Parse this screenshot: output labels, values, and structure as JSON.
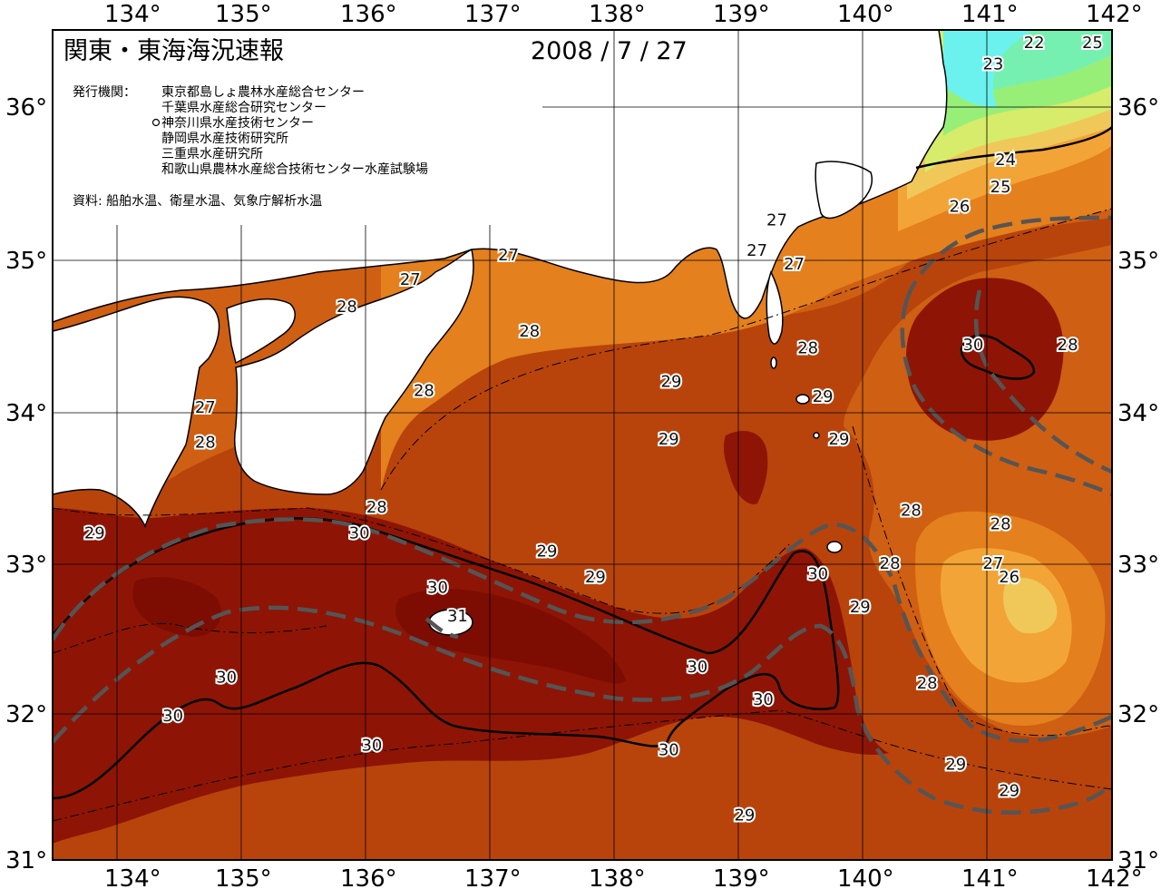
{
  "header": {
    "title": "関東・東海海況速報",
    "date": "2008 / 7 / 27"
  },
  "agencies": {
    "label": "発行機関：",
    "list": [
      "東京都島しょ農林水産総合センター",
      "千葉県水産総合研究センター",
      "神奈川県水産技術センター",
      "静岡県水産技術研究所",
      "三重県水産研究所",
      "和歌山県農林水産総合技術センター水産試験場"
    ],
    "marked_index": 2
  },
  "source": "資料: 船舶水温、衛星水温、気象庁解析水温",
  "axes": {
    "lon_ticks": [
      "134°",
      "135°",
      "136°",
      "137°",
      "138°",
      "139°",
      "140°",
      "141°",
      "142°"
    ],
    "lat_ticks": [
      "36°",
      "35°",
      "34°",
      "33°",
      "32°",
      "31°"
    ]
  },
  "colors": {
    "sea_31": "#7d0d03",
    "sea_30": "#8e1505",
    "sea_29": "#b8440c",
    "sea_28": "#cf5f12",
    "sea_27": "#e4801d",
    "sea_26": "#f3a436",
    "sea_25": "#f0c85a",
    "sea_24": "#d6ec6a",
    "sea_23": "#98ef78",
    "sea_22": "#76f0b0",
    "sea_21": "#6cf2ee",
    "land": "#ffffff",
    "kuroshio_axis": "#555555"
  },
  "contour_labels": [
    {
      "text": "22",
      "lon": 141.38,
      "lat": 36.43
    },
    {
      "text": "25",
      "lon": 141.85,
      "lat": 36.43
    },
    {
      "text": "23",
      "lon": 141.05,
      "lat": 36.29
    },
    {
      "text": "24",
      "lon": 141.15,
      "lat": 35.66
    },
    {
      "text": "25",
      "lon": 141.11,
      "lat": 35.48
    },
    {
      "text": "26",
      "lon": 140.78,
      "lat": 35.35
    },
    {
      "text": "27",
      "lon": 139.31,
      "lat": 35.26
    },
    {
      "text": "27",
      "lon": 139.15,
      "lat": 35.06
    },
    {
      "text": "27",
      "lon": 139.45,
      "lat": 34.97
    },
    {
      "text": "27",
      "lon": 137.15,
      "lat": 35.03
    },
    {
      "text": "27",
      "lon": 136.36,
      "lat": 34.87
    },
    {
      "text": "28",
      "lon": 135.85,
      "lat": 34.69
    },
    {
      "text": "28",
      "lon": 137.32,
      "lat": 34.53
    },
    {
      "text": "28",
      "lon": 139.56,
      "lat": 34.42
    },
    {
      "text": "30",
      "lon": 140.89,
      "lat": 34.44
    },
    {
      "text": "28",
      "lon": 141.65,
      "lat": 34.44
    },
    {
      "text": "29",
      "lon": 138.46,
      "lat": 34.2
    },
    {
      "text": "28",
      "lon": 136.47,
      "lat": 34.14
    },
    {
      "text": "29",
      "lon": 139.68,
      "lat": 34.1
    },
    {
      "text": "27",
      "lon": 134.71,
      "lat": 34.03
    },
    {
      "text": "29",
      "lon": 138.44,
      "lat": 33.82
    },
    {
      "text": "29",
      "lon": 139.81,
      "lat": 33.82
    },
    {
      "text": "28",
      "lon": 134.71,
      "lat": 33.8
    },
    {
      "text": "28",
      "lon": 136.09,
      "lat": 33.37
    },
    {
      "text": "28",
      "lon": 140.39,
      "lat": 33.35
    },
    {
      "text": "28",
      "lon": 141.11,
      "lat": 33.26
    },
    {
      "text": "29",
      "lon": 133.82,
      "lat": 33.2
    },
    {
      "text": "30",
      "lon": 135.95,
      "lat": 33.2
    },
    {
      "text": "29",
      "lon": 137.46,
      "lat": 33.08
    },
    {
      "text": "28",
      "lon": 140.22,
      "lat": 33.0
    },
    {
      "text": "27",
      "lon": 141.05,
      "lat": 33.0
    },
    {
      "text": "30",
      "lon": 139.64,
      "lat": 32.93
    },
    {
      "text": "29",
      "lon": 137.85,
      "lat": 32.91
    },
    {
      "text": "26",
      "lon": 141.18,
      "lat": 32.91
    },
    {
      "text": "30",
      "lon": 136.58,
      "lat": 32.84
    },
    {
      "text": "29",
      "lon": 139.98,
      "lat": 32.71
    },
    {
      "text": "31",
      "lon": 136.74,
      "lat": 32.65
    },
    {
      "text": "30",
      "lon": 138.67,
      "lat": 32.31
    },
    {
      "text": "30",
      "lon": 134.88,
      "lat": 32.24
    },
    {
      "text": "28",
      "lon": 140.52,
      "lat": 32.2
    },
    {
      "text": "30",
      "lon": 139.2,
      "lat": 32.09
    },
    {
      "text": "30",
      "lon": 134.45,
      "lat": 31.98
    },
    {
      "text": "30",
      "lon": 136.05,
      "lat": 31.78
    },
    {
      "text": "30",
      "lon": 138.44,
      "lat": 31.75
    },
    {
      "text": "29",
      "lon": 140.75,
      "lat": 31.65
    },
    {
      "text": "29",
      "lon": 141.18,
      "lat": 31.47
    },
    {
      "text": "29",
      "lon": 139.05,
      "lat": 31.3
    }
  ]
}
